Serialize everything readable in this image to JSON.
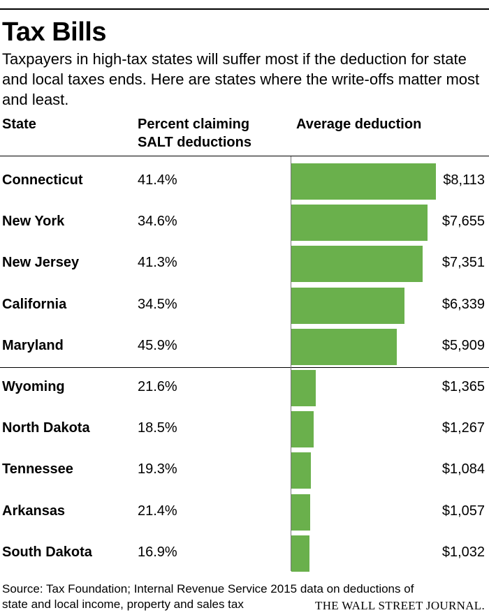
{
  "header": {
    "title": "Tax Bills",
    "subtitle": "Taxpayers in high-tax states will suffer most if the deduction for state and local taxes ends. Here are states where the write-offs matter most and least."
  },
  "columns": {
    "state": "State",
    "percent_line1": "Percent claiming",
    "percent_line2": "SALT deductions",
    "average": "Average deduction"
  },
  "chart_data": {
    "type": "bar",
    "orientation": "horizontal",
    "categories": [
      "Connecticut",
      "New York",
      "New Jersey",
      "California",
      "Maryland",
      "Wyoming",
      "North Dakota",
      "Tennessee",
      "Arkansas",
      "South Dakota"
    ],
    "values": [
      8113,
      7655,
      7351,
      6339,
      5909,
      1365,
      1267,
      1084,
      1057,
      1032
    ],
    "value_labels": [
      "$8,113",
      "$7,655",
      "$7,351",
      "$6,339",
      "$5,909",
      "$1,365",
      "$1,267",
      "$1,084",
      "$1,057",
      "$1,032"
    ],
    "percent_claiming": [
      "41.4%",
      "34.6%",
      "41.3%",
      "34.5%",
      "45.9%",
      "21.6%",
      "18.5%",
      "19.3%",
      "21.4%",
      "16.9%"
    ],
    "groups": [
      {
        "rows": [
          0,
          1,
          2,
          3,
          4
        ]
      },
      {
        "rows": [
          5,
          6,
          7,
          8,
          9
        ]
      }
    ],
    "xlim": [
      0,
      8113
    ],
    "bar_color": "#6ab04c",
    "grid": false,
    "legend": "none"
  },
  "footer": {
    "source_line1": "Source: Tax Foundation; Internal Revenue Service 2015 data on deductions of",
    "source_line2": "state and local income, property and sales tax",
    "logo": "THE WALL STREET JOURNAL."
  }
}
